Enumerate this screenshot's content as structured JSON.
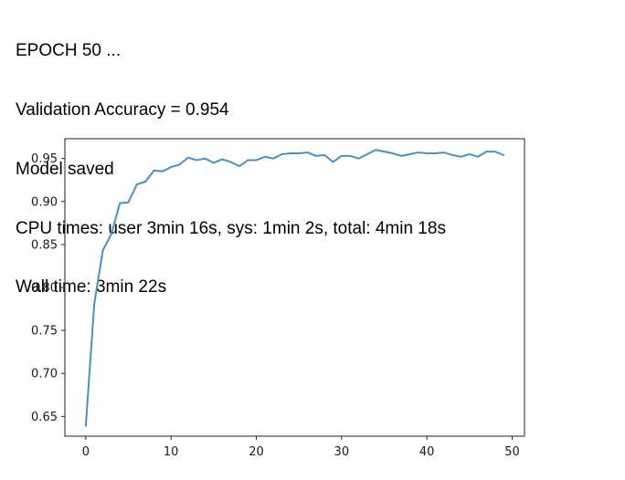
{
  "output_lines": [
    "EPOCH 50 ...",
    "Validation Accuracy = 0.954",
    "Model saved",
    "CPU times: user 3min 16s, sys: 1min 2s, total: 4min 18s",
    "Wall time: 3min 22s"
  ],
  "chart_data": {
    "type": "line",
    "title": "",
    "xlabel": "",
    "ylabel": "",
    "xlim": [
      -2.45,
      51.45
    ],
    "ylim": [
      0.627,
      0.973
    ],
    "xticks": [
      0,
      10,
      20,
      30,
      40,
      50
    ],
    "yticks": [
      0.65,
      0.7,
      0.75,
      0.8,
      0.85,
      0.9,
      0.95
    ],
    "ytick_labels": [
      "0.65",
      "0.70",
      "0.75",
      "0.80",
      "0.85",
      "0.90",
      "0.95"
    ],
    "xtick_labels": [
      "0",
      "10",
      "20",
      "30",
      "40",
      "50"
    ],
    "grid": false,
    "line_color": "#4a90c4",
    "series": [
      {
        "x": [
          0,
          1,
          2,
          3,
          4,
          5,
          6,
          7,
          8,
          9,
          10,
          11,
          12,
          13,
          14,
          15,
          16,
          17,
          18,
          19,
          20,
          21,
          22,
          23,
          24,
          25,
          26,
          27,
          28,
          29,
          30,
          31,
          32,
          33,
          34,
          35,
          36,
          37,
          38,
          39,
          40,
          41,
          42,
          43,
          44,
          45,
          46,
          47,
          48,
          49
        ],
        "values": [
          0.639,
          0.781,
          0.843,
          0.862,
          0.898,
          0.899,
          0.92,
          0.923,
          0.936,
          0.935,
          0.94,
          0.943,
          0.951,
          0.948,
          0.95,
          0.945,
          0.949,
          0.946,
          0.941,
          0.948,
          0.948,
          0.952,
          0.95,
          0.955,
          0.956,
          0.956,
          0.957,
          0.953,
          0.954,
          0.946,
          0.953,
          0.953,
          0.95,
          0.955,
          0.96,
          0.958,
          0.956,
          0.953,
          0.955,
          0.957,
          0.956,
          0.956,
          0.957,
          0.954,
          0.952,
          0.955,
          0.952,
          0.958,
          0.958,
          0.954
        ]
      }
    ]
  }
}
